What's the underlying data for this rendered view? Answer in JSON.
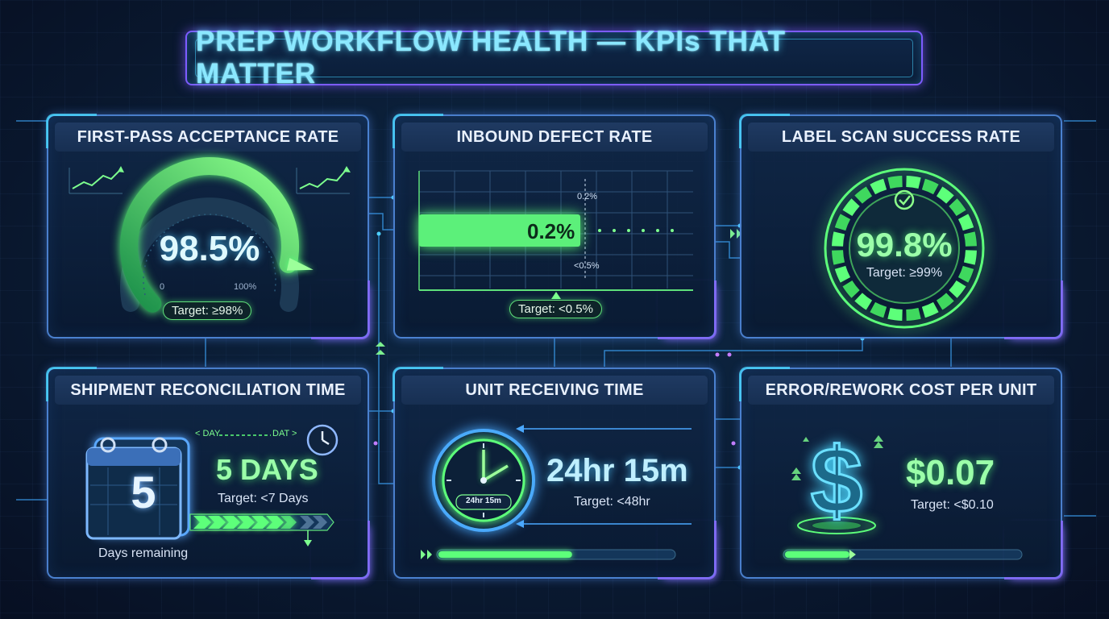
{
  "title": "PREP WORKFLOW HEALTH — KPIs THAT MATTER",
  "colors": {
    "accent_green": "#5dff7a",
    "accent_cyan": "#49d7ff",
    "accent_purple": "#8a6bff"
  },
  "cards": {
    "first_pass": {
      "title": "FIRST-PASS ACCEPTANCE RATE",
      "value": "98.5%",
      "gauge_min": "0",
      "gauge_max": "100%",
      "gauge_fraction": 0.985,
      "target": "Target: ≥98%",
      "icons": [
        "trend-up-icon",
        "trend-up-icon"
      ]
    },
    "inbound_defect": {
      "title": "INBOUND DEFECT RATE",
      "value": "0.2%",
      "marker_label": "0.2%",
      "threshold_label": "<0.5%",
      "target": "Target: <0.5%"
    },
    "label_scan": {
      "title": "LABEL SCAN SUCCESS RATE",
      "value": "99.8%",
      "target": "Target: ≥99%",
      "ring_fraction": 0.998,
      "icons": [
        "check-icon"
      ]
    },
    "reconciliation": {
      "title": "SHIPMENT RECONCILIATION TIME",
      "calendar_number": "5",
      "value": "5 DAYS",
      "target": "Target: <7 Days",
      "caption": "Days remaining",
      "scale_left": "< DAY",
      "scale_right": "DAT >",
      "icons": [
        "calendar-icon",
        "clock-icon"
      ]
    },
    "receiving": {
      "title": "UNIT RECEIVING TIME",
      "value": "24hr 15m",
      "clock_label": "24hr 15m",
      "target": "Target: <48hr",
      "icons": [
        "stopwatch-icon"
      ]
    },
    "rework_cost": {
      "title": "ERROR/REWORK COST PER UNIT",
      "value": "$0.07",
      "target": "Target: <$0.10",
      "icons": [
        "dollar-icon"
      ]
    }
  }
}
